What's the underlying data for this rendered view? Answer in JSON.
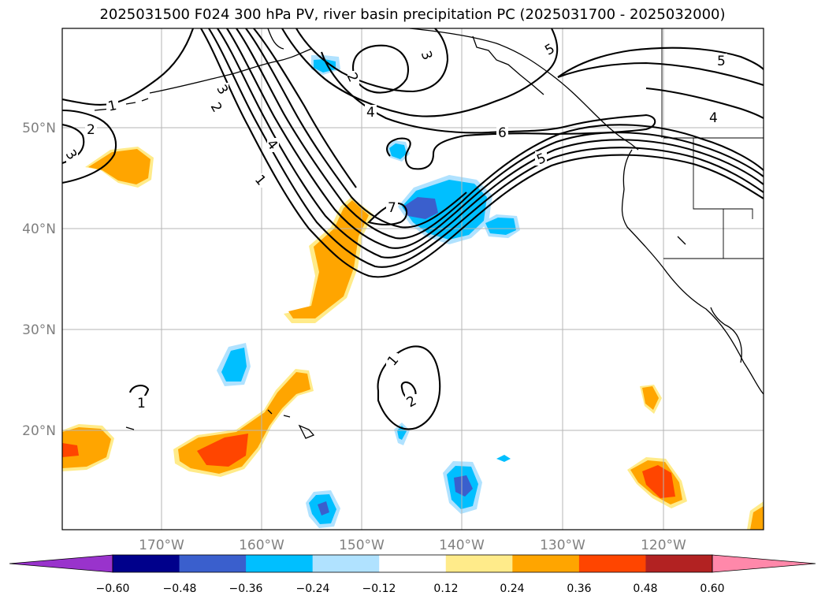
{
  "title": "2025031500 F024 300 hPa PV, river basin precipitation PC (2025031700 - 2025032000)",
  "axes": {
    "lon_ticks": [
      "170°W",
      "160°W",
      "150°W",
      "140°W",
      "130°W",
      "120°W"
    ],
    "lat_ticks": [
      "50°N",
      "40°N",
      "30°N",
      "20°N"
    ]
  },
  "contour_labels": [
    "1",
    "2",
    "3",
    "3",
    "2",
    "4",
    "4",
    "1",
    "5",
    "5",
    "6",
    "5",
    "4",
    "7",
    "1",
    "2",
    "1",
    "2",
    "3"
  ],
  "colorbar": {
    "ticks": [
      "−0.60",
      "−0.48",
      "−0.36",
      "−0.24",
      "−0.12",
      "0.12",
      "0.24",
      "0.36",
      "0.48",
      "0.60"
    ],
    "colors": [
      "#9933cc",
      "#00008b",
      "#3a5fcd",
      "#00bfff",
      "#b0e2ff",
      "#ffffff",
      "#ffeb8a",
      "#ffa500",
      "#ff4500",
      "#b22222",
      "#ff88aa"
    ]
  }
}
